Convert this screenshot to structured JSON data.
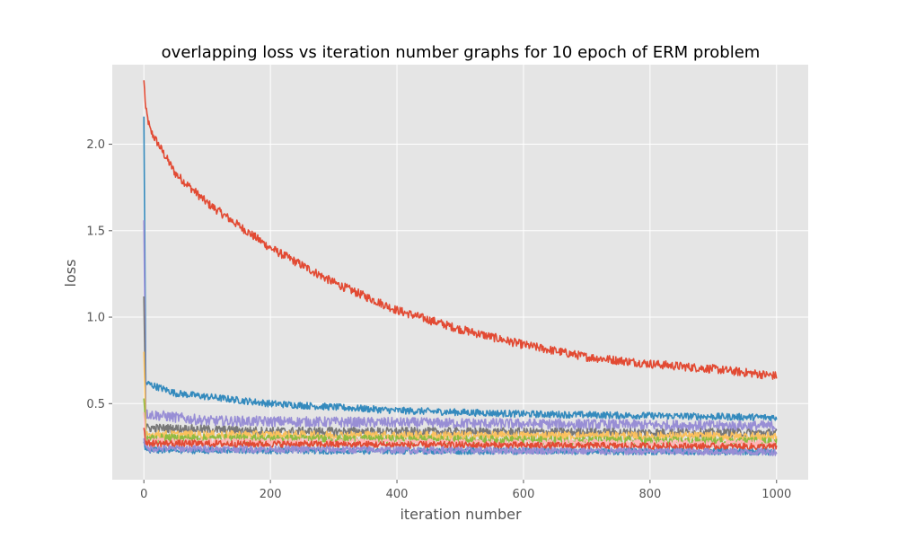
{
  "chart_data": {
    "type": "line",
    "title": "overlapping loss vs iteration number graphs for 10 epoch of ERM problem",
    "xlabel": "iteration number",
    "ylabel": "loss",
    "xlim": [
      -50,
      1050
    ],
    "ylim": [
      0.06,
      2.46
    ],
    "x_ticks": [
      0,
      200,
      400,
      600,
      800,
      1000
    ],
    "y_ticks": [
      0.5,
      1.0,
      1.5,
      2.0
    ],
    "x_tick_labels": [
      "0",
      "200",
      "400",
      "600",
      "800",
      "1000"
    ],
    "y_tick_labels": [
      "0.5",
      "1.0",
      "1.5",
      "2.0"
    ],
    "grid": true,
    "background": "#e5e5e5",
    "grid_color": "#ffffff",
    "iterations": 1000,
    "series": [
      {
        "color": "#e24a33",
        "start": 2.37,
        "knots": [
          [
            0,
            2.37
          ],
          [
            3,
            2.2
          ],
          [
            10,
            2.08
          ],
          [
            50,
            1.83
          ],
          [
            100,
            1.66
          ],
          [
            200,
            1.4
          ],
          [
            300,
            1.2
          ],
          [
            400,
            1.04
          ],
          [
            500,
            0.93
          ],
          [
            600,
            0.84
          ],
          [
            700,
            0.77
          ],
          [
            800,
            0.73
          ],
          [
            900,
            0.7
          ],
          [
            1000,
            0.66
          ]
        ],
        "noise": 0.025
      },
      {
        "color": "#348abd",
        "start": 2.16,
        "knots": [
          [
            0,
            2.16
          ],
          [
            3,
            0.62
          ],
          [
            50,
            0.56
          ],
          [
            200,
            0.5
          ],
          [
            400,
            0.46
          ],
          [
            600,
            0.44
          ],
          [
            800,
            0.43
          ],
          [
            1000,
            0.42
          ]
        ],
        "noise": 0.02
      },
      {
        "color": "#988ed5",
        "start": 1.56,
        "knots": [
          [
            0,
            1.56
          ],
          [
            3,
            0.44
          ],
          [
            100,
            0.4
          ],
          [
            1000,
            0.37
          ]
        ],
        "noise": 0.03
      },
      {
        "color": "#777777",
        "start": 1.12,
        "knots": [
          [
            0,
            1.12
          ],
          [
            3,
            0.36
          ],
          [
            200,
            0.34
          ],
          [
            1000,
            0.33
          ]
        ],
        "noise": 0.025
      },
      {
        "color": "#fbc15e",
        "start": 0.8,
        "knots": [
          [
            0,
            0.8
          ],
          [
            3,
            0.32
          ],
          [
            1000,
            0.31
          ]
        ],
        "noise": 0.025
      },
      {
        "color": "#8eba42",
        "start": 0.53,
        "knots": [
          [
            0,
            0.53
          ],
          [
            3,
            0.3
          ],
          [
            1000,
            0.28
          ]
        ],
        "noise": 0.025
      },
      {
        "color": "#ffb5b8",
        "start": 0.45,
        "knots": [
          [
            0,
            0.45
          ],
          [
            3,
            0.28
          ],
          [
            1000,
            0.27
          ]
        ],
        "noise": 0.02
      },
      {
        "color": "#e24a33",
        "start": 0.36,
        "knots": [
          [
            0,
            0.36
          ],
          [
            3,
            0.27
          ],
          [
            1000,
            0.25
          ]
        ],
        "noise": 0.02
      },
      {
        "color": "#348abd",
        "start": 0.28,
        "knots": [
          [
            0,
            0.28
          ],
          [
            3,
            0.23
          ],
          [
            1000,
            0.22
          ]
        ],
        "noise": 0.018
      },
      {
        "color": "#988ed5",
        "start": 0.3,
        "knots": [
          [
            0,
            0.3
          ],
          [
            3,
            0.24
          ],
          [
            1000,
            0.22
          ]
        ],
        "noise": 0.02
      }
    ]
  }
}
